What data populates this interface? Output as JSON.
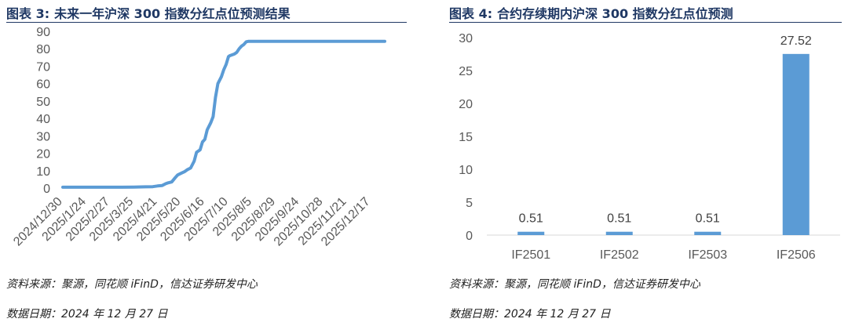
{
  "left": {
    "fig_label": "图表 3:",
    "title": "未来一年沪深 300 指数分红点位预测结果",
    "source": "资料来源：聚源，同花顺 iFinD，信达证券研发中心",
    "date": "数据日期：2024 年 12 月 27 日"
  },
  "right": {
    "fig_label": "图表 4:",
    "title": "合约存续期内沪深 300 指数分红点位预测",
    "source": "资料来源：聚源，同花顺 iFinD，信达证券研发中心",
    "date": "数据日期：2024 年 12 月 27 日"
  },
  "colors": {
    "series": "#5b9bd5",
    "title": "#1f3864"
  },
  "chart_data": [
    {
      "type": "line",
      "title": "未来一年沪深 300 指数分红点位预测结果",
      "xlabel": "",
      "ylabel": "",
      "ylim": [
        0,
        90
      ],
      "yticks": [
        0,
        10,
        20,
        30,
        40,
        50,
        60,
        70,
        80,
        90
      ],
      "xticks": [
        "2024/12/30",
        "2025/1/24",
        "2025/2/27",
        "2025/3/25",
        "2025/4/21",
        "2025/5/20",
        "2025/6/16",
        "2025/7/10",
        "2025/8/5",
        "2025/8/29",
        "2025/9/24",
        "2025/10/28",
        "2025/11/21",
        "2025/12/17"
      ],
      "x": [
        0,
        0.5,
        1,
        1.5,
        2,
        2.5,
        3,
        3.5,
        3.8,
        4.0,
        4.2,
        4.35,
        4.45,
        4.6,
        4.75,
        4.85,
        5.0,
        5.15,
        5.25,
        5.4,
        5.55,
        5.65,
        5.8,
        5.9,
        6.0,
        6.1,
        6.25,
        6.35,
        6.45,
        6.55,
        6.7,
        6.8,
        6.9,
        7.0,
        7.05,
        7.15,
        7.25,
        7.35,
        7.45,
        7.55,
        7.65,
        7.75,
        7.85,
        8.0,
        8.15,
        8.3,
        8.45,
        8.6,
        9.0,
        10,
        11,
        12,
        13,
        13.6
      ],
      "values": [
        0.5,
        0.5,
        0.5,
        0.5,
        0.5,
        0.5,
        0.6,
        0.7,
        0.8,
        1.2,
        1.5,
        2.5,
        3.0,
        3.5,
        6.0,
        7.5,
        8.5,
        9.5,
        10.5,
        11.5,
        15.5,
        20.5,
        22.0,
        26.5,
        28.0,
        33.5,
        37.5,
        41.0,
        52.0,
        60.0,
        64.0,
        68.0,
        71.0,
        75.5,
        76.0,
        76.5,
        77.0,
        78.0,
        80.0,
        81.5,
        82.5,
        84.0,
        84.3,
        84.3,
        84.3,
        84.3,
        84.3,
        84.3,
        84.3,
        84.3,
        84.3,
        84.3,
        84.3,
        84.3
      ]
    },
    {
      "type": "bar",
      "title": "合约存续期内沪深 300 指数分红点位预测",
      "xlabel": "",
      "ylabel": "",
      "ylim": [
        0,
        30
      ],
      "yticks": [
        0,
        5,
        10,
        15,
        20,
        25,
        30
      ],
      "categories": [
        "IF2501",
        "IF2502",
        "IF2503",
        "IF2506"
      ],
      "values": [
        0.51,
        0.51,
        0.51,
        27.52
      ],
      "data_labels": [
        "0.51",
        "0.51",
        "0.51",
        "27.52"
      ]
    }
  ]
}
